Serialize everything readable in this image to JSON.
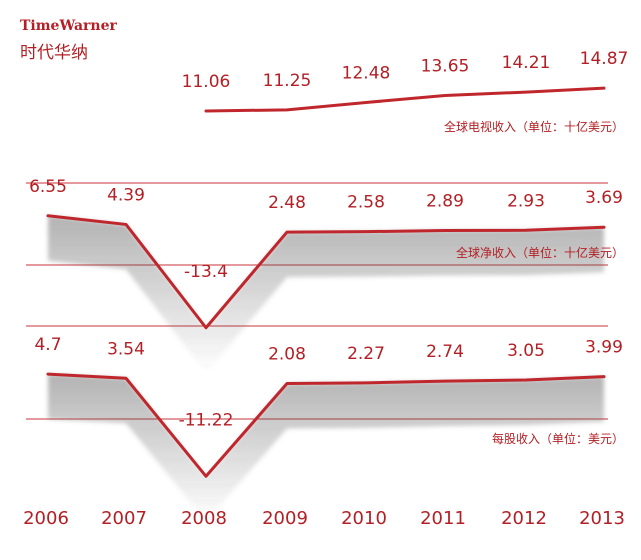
{
  "brand": {
    "en": "TimeWarner",
    "zh": "时代华纳"
  },
  "chart_data": {
    "type": "line",
    "x": [
      "2006",
      "2007",
      "2008",
      "2009",
      "2010",
      "2011",
      "2012",
      "2013"
    ],
    "series": [
      {
        "name": "全球电视收入（单位：十亿美元）",
        "values": [
          null,
          null,
          11.06,
          11.25,
          12.48,
          13.65,
          14.21,
          14.87
        ],
        "labels": [
          "",
          "",
          "11.06",
          "11.25",
          "12.48",
          "13.65",
          "14.21",
          "14.87"
        ]
      },
      {
        "name": "全球净收入（单位：十亿美元）",
        "values": [
          6.55,
          4.39,
          -13.4,
          2.48,
          2.58,
          2.89,
          2.93,
          3.69
        ],
        "labels": [
          "6.55",
          "4.39",
          "-13.4",
          "2.48",
          "2.58",
          "2.89",
          "2.93",
          "3.69"
        ]
      },
      {
        "name": "每股收入（单位：美元）",
        "values": [
          4.7,
          3.54,
          -11.22,
          2.08,
          2.27,
          2.74,
          3.05,
          3.99
        ],
        "labels": [
          "4.7",
          "3.54",
          "-11.22",
          "2.08",
          "2.27",
          "2.74",
          "3.05",
          "3.99"
        ]
      }
    ],
    "grid": false,
    "legend": "none"
  },
  "colors": {
    "accent": "#b31f24",
    "line": "#c0272d",
    "rule": "#c9363b"
  }
}
